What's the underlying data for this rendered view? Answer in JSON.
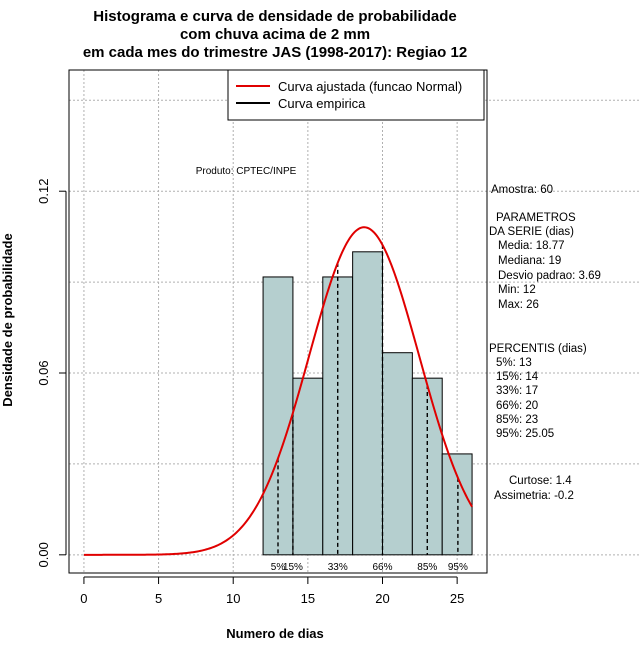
{
  "chart_data": {
    "type": "bar",
    "title_lines": [
      "Histograma e curva de densidade de probabilidade",
      "com chuva acima de 2 mm",
      "em cada mes do trimestre JAS (1998-2017): Regiao 12"
    ],
    "xlabel": "Numero de dias",
    "ylabel": "Densidade de probabilidade",
    "xlim": [
      -1,
      27
    ],
    "ylim": [
      -0.006,
      0.16
    ],
    "x_ticks": [
      0,
      5,
      10,
      15,
      20,
      25
    ],
    "y_ticks": [
      0.0,
      0.06,
      0.12
    ],
    "y_tick_labels": [
      "0.00",
      "0.06",
      "0.12"
    ],
    "grid": true,
    "bins": [
      {
        "start": 12,
        "end": 14,
        "density": 0.0917
      },
      {
        "start": 14,
        "end": 16,
        "density": 0.0583
      },
      {
        "start": 16,
        "end": 18,
        "density": 0.0917
      },
      {
        "start": 18,
        "end": 20,
        "density": 0.1
      },
      {
        "start": 20,
        "end": 22,
        "density": 0.0667
      },
      {
        "start": 22,
        "end": 24,
        "density": 0.0583
      },
      {
        "start": 24,
        "end": 26,
        "density": 0.0333
      }
    ],
    "normal_fit": {
      "mean": 18.77,
      "sd": 3.69,
      "x_range": [
        0,
        26
      ]
    },
    "percentiles": [
      {
        "value": 13,
        "label": "5%"
      },
      {
        "value": 14,
        "label": "15%"
      },
      {
        "value": 17,
        "label": "33%"
      },
      {
        "value": 20,
        "label": "66%"
      },
      {
        "value": 23,
        "label": "85%"
      },
      {
        "value": 25.05,
        "label": "95%"
      }
    ],
    "legend": {
      "position": "top-right",
      "entries": [
        {
          "label": "Curva ajustada (funcao Normal)",
          "color": "#e00000"
        },
        {
          "label": "Curva empirica",
          "color": "#000000"
        }
      ]
    },
    "credit": "Produto: CPTEC/INPE"
  },
  "side_panel": {
    "sample": "Amostra: 60",
    "params_header": [
      "PARAMETROS",
      "DA SERIE (dias)"
    ],
    "params": [
      "Media: 18.77",
      "Mediana: 19",
      "Desvio padrao: 3.69",
      "Min: 12",
      "Max: 26"
    ],
    "percentiles_header": "PERCENTIS (dias)",
    "percentiles": [
      "5%: 13",
      "15%: 14",
      "33%: 17",
      "66%: 20",
      "85%: 23",
      "95%: 25.05"
    ],
    "shape": [
      "Curtose: 1.4",
      "Assimetria: -0.2"
    ]
  },
  "colors": {
    "bar_fill": "#b5cfcf",
    "curve": "#e00000",
    "grid": "#b0b0b0"
  }
}
